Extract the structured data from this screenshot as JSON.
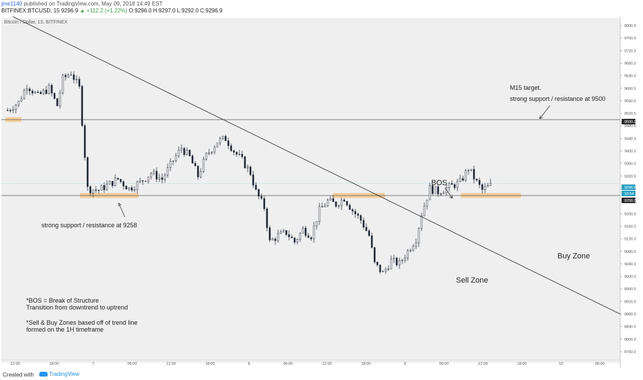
{
  "header": {
    "user": "jme1140",
    "published": "published on TradingView.com, May 09, 2018 14:49 EST",
    "symbol": "BITFINEX:BTCUSD, 15",
    "price": "9296.9",
    "change": "▲ +112.2 (+1.22%)",
    "ohlc": "O:9296.0 H:9297.0 L:9292.0 C:9296.9"
  },
  "chart_title": "Bitcoin / Dollar, 15, BITFINEX",
  "price_badges": {
    "level_9500": "9500.0",
    "current": "9296.9",
    "timer": "10:54",
    "level_9258": "9258.0"
  },
  "annotations": {
    "m15_target": "M15 target.",
    "strong_9500": "strong support / resistance at 9500",
    "strong_9258": "strong support /  resistance at 9258",
    "bos": "BOS",
    "buy_zone": "Buy Zone",
    "sell_zone": "Sell Zone",
    "bos_def_1": "*BOS = Break of Structure",
    "bos_def_2": "Transition from downtrend to uptrend",
    "zones_1": "*Sell & Buy Zones based off of trend line",
    "zones_2": "formed on the 1H timeframe"
  },
  "footer": {
    "created": "Created with",
    "brand": "TradingView"
  },
  "colors": {
    "candle": "#1c2733",
    "zone": "#f5c78a",
    "background": "#efefef",
    "up": "#3aa74a",
    "link": "#2962ff"
  },
  "chart_data": {
    "type": "candlestick",
    "title": "Bitcoin / Dollar, 15, BITFINEX",
    "x_ticks": [
      "12:00",
      "18:00",
      "7",
      "06:00",
      "12:00",
      "18:00",
      "8",
      "06:00",
      "12:00",
      "18:00",
      "9",
      "06:00",
      "12:00",
      "18:00",
      "10",
      "06:00"
    ],
    "y_ticks": [
      9800,
      9760,
      9720,
      9680,
      9640,
      9600,
      9560,
      9520,
      9480,
      9440,
      9400,
      9360,
      9320,
      9280,
      9240,
      9200,
      9160,
      9120,
      9080,
      9040,
      9000,
      8960,
      8920,
      8880,
      8840,
      8800,
      8760
    ],
    "y_tick_labels": [
      "9800.0",
      "9760.0",
      "9720.0",
      "9680.0",
      "9640.0",
      "9600.0",
      "9560.0",
      "9520.0",
      "9480.0",
      "9440.0",
      "9400.0",
      "9360.0",
      "9320.0",
      "9280.0",
      "9240.0",
      "9200.0",
      "9160.0",
      "9120.0",
      "9080.0",
      "9040.0",
      "9000.0",
      "8960.0",
      "8920.0",
      "8880.0",
      "8840.0",
      "8800.0",
      "8760.0"
    ],
    "ylim": [
      8745,
      9825
    ],
    "horizontal_levels": [
      9500,
      9258
    ],
    "trend_line": [
      {
        "x": "6 May 09:00",
        "price": 9840
      },
      {
        "x": "10 May 08:00",
        "price": 8880
      }
    ],
    "close_path": [
      [
        0,
        9530
      ],
      [
        4,
        9555
      ],
      [
        7,
        9610
      ],
      [
        11,
        9575
      ],
      [
        15,
        9600
      ],
      [
        18,
        9545
      ],
      [
        20,
        9630
      ],
      [
        23,
        9650
      ],
      [
        26,
        9600
      ],
      [
        29,
        9280
      ],
      [
        33,
        9275
      ],
      [
        36,
        9290
      ],
      [
        40,
        9310
      ],
      [
        44,
        9280
      ],
      [
        48,
        9300
      ],
      [
        52,
        9330
      ],
      [
        56,
        9310
      ],
      [
        60,
        9370
      ],
      [
        63,
        9410
      ],
      [
        66,
        9380
      ],
      [
        69,
        9320
      ],
      [
        72,
        9385
      ],
      [
        76,
        9430
      ],
      [
        79,
        9440
      ],
      [
        82,
        9400
      ],
      [
        85,
        9370
      ],
      [
        88,
        9330
      ],
      [
        90,
        9270
      ],
      [
        93,
        9220
      ],
      [
        95,
        9110
      ],
      [
        98,
        9130
      ],
      [
        101,
        9140
      ],
      [
        104,
        9110
      ],
      [
        107,
        9150
      ],
      [
        110,
        9130
      ],
      [
        113,
        9210
      ],
      [
        116,
        9240
      ],
      [
        119,
        9230
      ],
      [
        122,
        9250
      ],
      [
        125,
        9210
      ],
      [
        128,
        9180
      ],
      [
        131,
        9130
      ],
      [
        133,
        9040
      ],
      [
        136,
        9010
      ],
      [
        139,
        9050
      ],
      [
        142,
        9040
      ],
      [
        145,
        9080
      ],
      [
        148,
        9120
      ],
      [
        150,
        9200
      ],
      [
        153,
        9280
      ],
      [
        156,
        9270
      ],
      [
        160,
        9285
      ],
      [
        164,
        9300
      ],
      [
        167,
        9345
      ],
      [
        170,
        9300
      ],
      [
        172,
        9275
      ],
      [
        175,
        9290
      ]
    ]
  }
}
